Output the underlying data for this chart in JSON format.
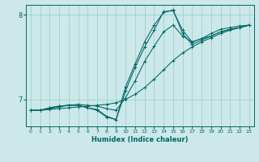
{
  "xlabel": "Humidex (Indice chaleur)",
  "bg_color": "#cce8e8",
  "line_color": "#006666",
  "grid_color": "#99cccc",
  "xlim": [
    -0.5,
    23.5
  ],
  "ylim": [
    6.68,
    8.12
  ],
  "yticks": [
    7,
    8
  ],
  "xticks": [
    0,
    1,
    2,
    3,
    4,
    5,
    6,
    7,
    8,
    9,
    10,
    11,
    12,
    13,
    14,
    15,
    16,
    17,
    18,
    19,
    20,
    21,
    22,
    23
  ],
  "lines": [
    {
      "x": [
        0,
        1,
        2,
        3,
        4,
        5,
        6,
        7,
        8,
        9,
        10,
        11,
        12,
        13,
        14,
        15,
        16,
        17,
        18,
        19,
        20,
        21,
        22,
        23
      ],
      "y": [
        6.87,
        6.87,
        6.88,
        6.89,
        6.9,
        6.91,
        6.92,
        6.93,
        6.94,
        6.96,
        7.0,
        7.06,
        7.14,
        7.24,
        7.35,
        7.46,
        7.55,
        7.62,
        7.68,
        7.73,
        7.78,
        7.82,
        7.85,
        7.88
      ]
    },
    {
      "x": [
        0,
        1,
        2,
        3,
        4,
        5,
        6,
        7,
        8,
        9,
        10,
        11,
        12,
        13,
        14,
        15,
        16,
        17,
        18,
        19,
        20,
        21,
        22,
        23
      ],
      "y": [
        6.87,
        6.87,
        6.89,
        6.91,
        6.93,
        6.94,
        6.93,
        6.92,
        6.89,
        6.87,
        7.02,
        7.22,
        7.45,
        7.63,
        7.8,
        7.88,
        7.75,
        7.68,
        7.72,
        7.78,
        7.83,
        7.85,
        7.87,
        7.88
      ]
    },
    {
      "x": [
        0,
        1,
        2,
        3,
        4,
        5,
        6,
        7,
        8,
        9,
        10,
        11,
        12,
        13,
        14,
        15,
        16,
        17,
        18,
        19,
        20,
        21,
        22,
        23
      ],
      "y": [
        6.87,
        6.87,
        6.9,
        6.92,
        6.93,
        6.93,
        6.9,
        6.88,
        6.8,
        6.76,
        7.1,
        7.38,
        7.62,
        7.82,
        8.04,
        8.05,
        7.82,
        7.68,
        7.72,
        7.75,
        7.8,
        7.83,
        7.85,
        7.88
      ]
    },
    {
      "x": [
        0,
        1,
        2,
        3,
        4,
        5,
        6,
        7,
        8,
        9,
        10,
        11,
        12,
        13,
        14,
        15,
        16,
        17,
        18,
        19,
        20,
        21,
        22,
        23
      ],
      "y": [
        6.87,
        6.87,
        6.9,
        6.92,
        6.93,
        6.93,
        6.9,
        6.87,
        6.79,
        6.76,
        7.15,
        7.42,
        7.68,
        7.88,
        8.03,
        8.06,
        7.78,
        7.65,
        7.7,
        7.75,
        7.8,
        7.83,
        7.85,
        7.88
      ]
    }
  ]
}
